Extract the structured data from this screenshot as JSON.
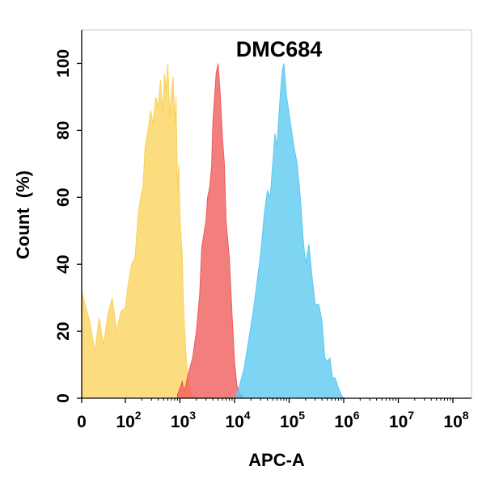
{
  "chart_data": {
    "type": "area",
    "title": "DMC684",
    "xlabel": "APC-A",
    "ylabel": "Count  (%)",
    "x_scale": "biexponential",
    "xlim": [
      0,
      100000000
    ],
    "ylim": [
      0,
      110
    ],
    "x_ticks": [
      {
        "base": "0",
        "exp": ""
      },
      {
        "base": "10",
        "exp": "2"
      },
      {
        "base": "10",
        "exp": "3"
      },
      {
        "base": "10",
        "exp": "4"
      },
      {
        "base": "10",
        "exp": "5"
      },
      {
        "base": "10",
        "exp": "6"
      },
      {
        "base": "10",
        "exp": "7"
      },
      {
        "base": "10",
        "exp": "8"
      }
    ],
    "y_ticks": [
      "0",
      "20",
      "40",
      "60",
      "80",
      "100"
    ],
    "grid": false,
    "legend": "none",
    "series": [
      {
        "color": "#fad25a",
        "x": [
          0,
          20,
          30,
          40,
          50,
          60,
          70,
          80,
          90,
          100,
          110,
          130,
          150,
          170,
          190,
          210,
          230,
          260,
          290,
          320,
          360,
          400,
          440,
          480,
          520,
          560,
          600,
          650,
          700,
          750,
          800,
          850,
          900,
          950,
          1000,
          1050,
          1100,
          1150,
          1200,
          1300,
          1400,
          1500,
          1600,
          1800
        ],
        "y": [
          32,
          22,
          14,
          24,
          16,
          25,
          30,
          20,
          26,
          27,
          33,
          40,
          42,
          54,
          60,
          63,
          75,
          80,
          86,
          82,
          90,
          87,
          95,
          85,
          97,
          92,
          100,
          84,
          92,
          96,
          82,
          90,
          62,
          70,
          55,
          48,
          43,
          30,
          23,
          12,
          6,
          3,
          1,
          0
        ]
      },
      {
        "color": "#f05a5a",
        "x": [
          900,
          1000,
          1100,
          1200,
          1400,
          1700,
          2000,
          2300,
          2500,
          2800,
          3000,
          3200,
          3500,
          3800,
          4000,
          4300,
          4600,
          5000,
          5500,
          6000,
          6500,
          7000,
          8000,
          9000,
          10000,
          11000,
          12000,
          13000,
          15000,
          18000
        ],
        "y": [
          1,
          3,
          5,
          2,
          7,
          12,
          20,
          31,
          45,
          50,
          53,
          60,
          63,
          69,
          82,
          90,
          97,
          100,
          90,
          78,
          70,
          53,
          42,
          25,
          11,
          4,
          2,
          1,
          0,
          0
        ]
      },
      {
        "color": "#5ac8f0",
        "x": [
          10000,
          12000,
          15000,
          18000,
          22000,
          26000,
          30000,
          35000,
          40000,
          45000,
          50000,
          55000,
          60000,
          65000,
          70000,
          75000,
          80000,
          90000,
          100000,
          120000,
          140000,
          160000,
          180000,
          200000,
          230000,
          260000,
          300000,
          350000,
          400000,
          450000,
          500000,
          560000,
          620000,
          700000,
          800000,
          900000,
          1000000
        ],
        "y": [
          0,
          3,
          9,
          17,
          26,
          35,
          43,
          55,
          62,
          60,
          70,
          79,
          75,
          85,
          92,
          98,
          100,
          90,
          85,
          76,
          70,
          60,
          48,
          40,
          46,
          37,
          28,
          28,
          23,
          12,
          11,
          12,
          6,
          6,
          3,
          1,
          0
        ]
      }
    ]
  }
}
